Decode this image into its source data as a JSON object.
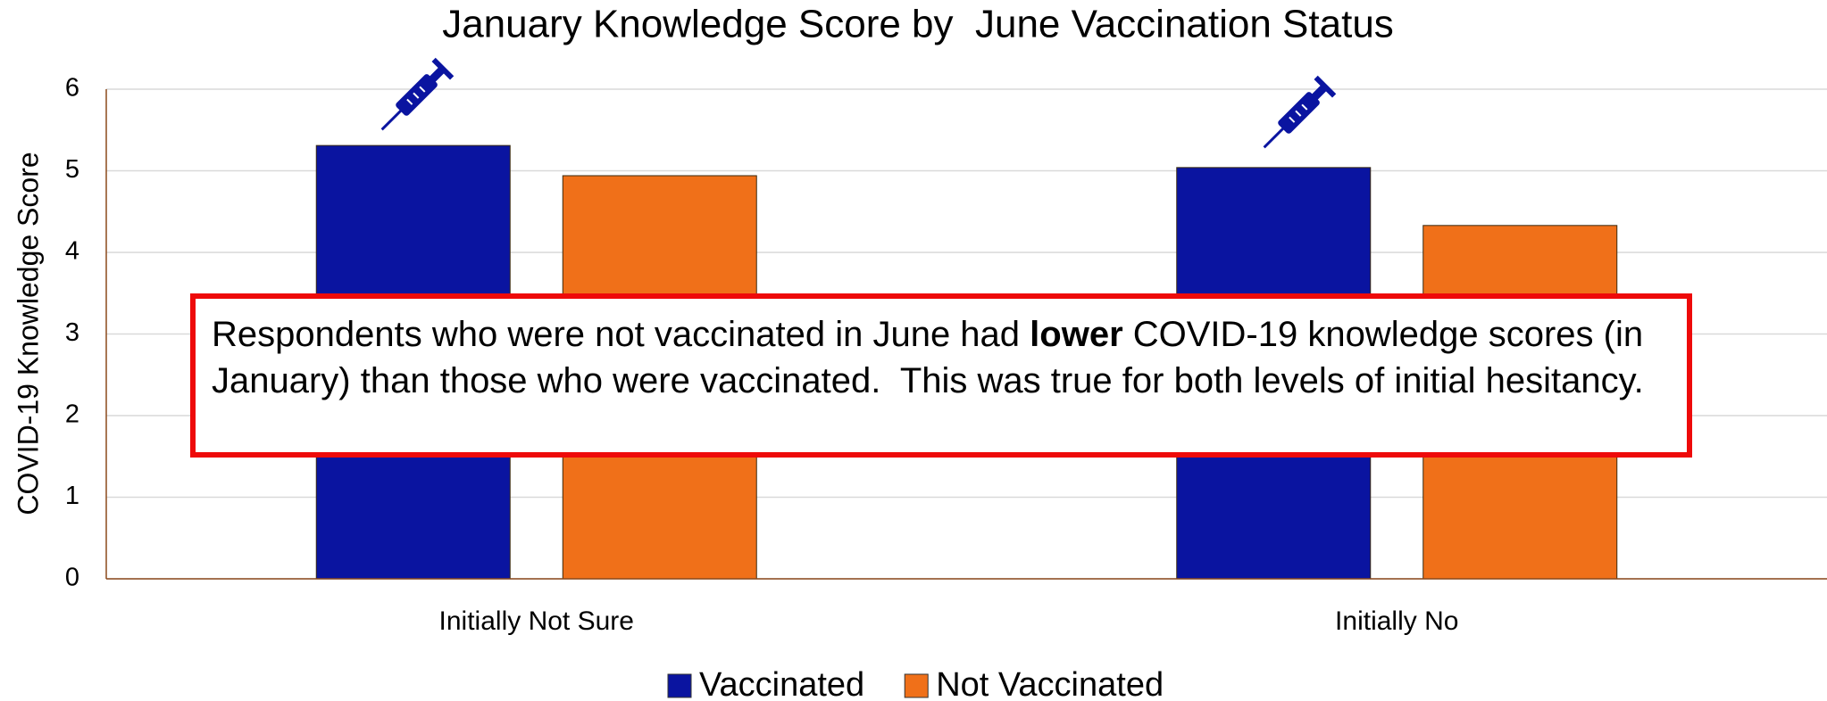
{
  "chart_data": {
    "type": "bar",
    "title": "January Knowledge Score by  June Vaccination Status",
    "ylabel": "COVID-19 Knowledge Score",
    "categories": [
      "Initially Not Sure",
      "Initially No"
    ],
    "series": [
      {
        "name": "Vaccinated",
        "color": "#0a14a0",
        "values": [
          5.31,
          5.04
        ]
      },
      {
        "name": "Not Vaccinated",
        "color": "#f07019",
        "values": [
          4.94,
          4.33
        ]
      }
    ],
    "ylim": [
      0,
      6
    ],
    "yticks": [
      0,
      1,
      2,
      3,
      4,
      5,
      6
    ],
    "grid": true,
    "legend": "bottom",
    "annotation": {
      "before": "Respondents who were not vaccinated in June had ",
      "bold": "lower",
      "after": " COVID-19 knowledge scores (in January) than those who were vaccinated.  This was true for both levels of initial hesitancy."
    }
  }
}
